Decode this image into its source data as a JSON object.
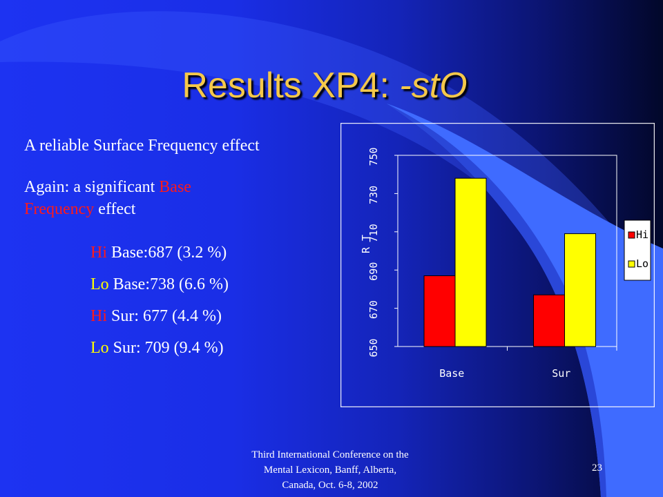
{
  "title": {
    "main": "Results XP4: ",
    "italic": "-stO"
  },
  "bullets": {
    "b1": "A reliable Surface Frequency effect",
    "b2_pre": "Again: a significant ",
    "b2_red1": "Base",
    "b2_red2": "Frequency",
    "b2_post": " effect"
  },
  "results": [
    {
      "level": "Hi",
      "rest": " Base:687 (3.2 %)"
    },
    {
      "level": "Lo",
      "rest": " Base:738 (6.6 %)"
    },
    {
      "level": "Hi",
      "rest": " Sur: 677 (4.4 %)"
    },
    {
      "level": "Lo",
      "rest": " Sur: 709 (9.4 %)"
    }
  ],
  "footer": {
    "line1": "Third International Conference on the",
    "line2": "Mental Lexicon, Banff, Alberta,",
    "line3": "Canada, Oct. 6-8, 2002",
    "page": "23"
  },
  "colors": {
    "hi": "#ff0000",
    "lo": "#ffff00",
    "title": "#f5c84a"
  },
  "chart_data": {
    "type": "bar",
    "categories": [
      "Base",
      "Sur"
    ],
    "series": [
      {
        "name": "Hi",
        "values": [
          687,
          677
        ]
      },
      {
        "name": "Lo",
        "values": [
          738,
          709
        ]
      }
    ],
    "ylabel": "R T",
    "ylim": [
      650,
      750
    ],
    "yticks": [
      "650",
      "670",
      "690",
      "710",
      "730",
      "750"
    ],
    "grid": false,
    "legend": "right"
  }
}
